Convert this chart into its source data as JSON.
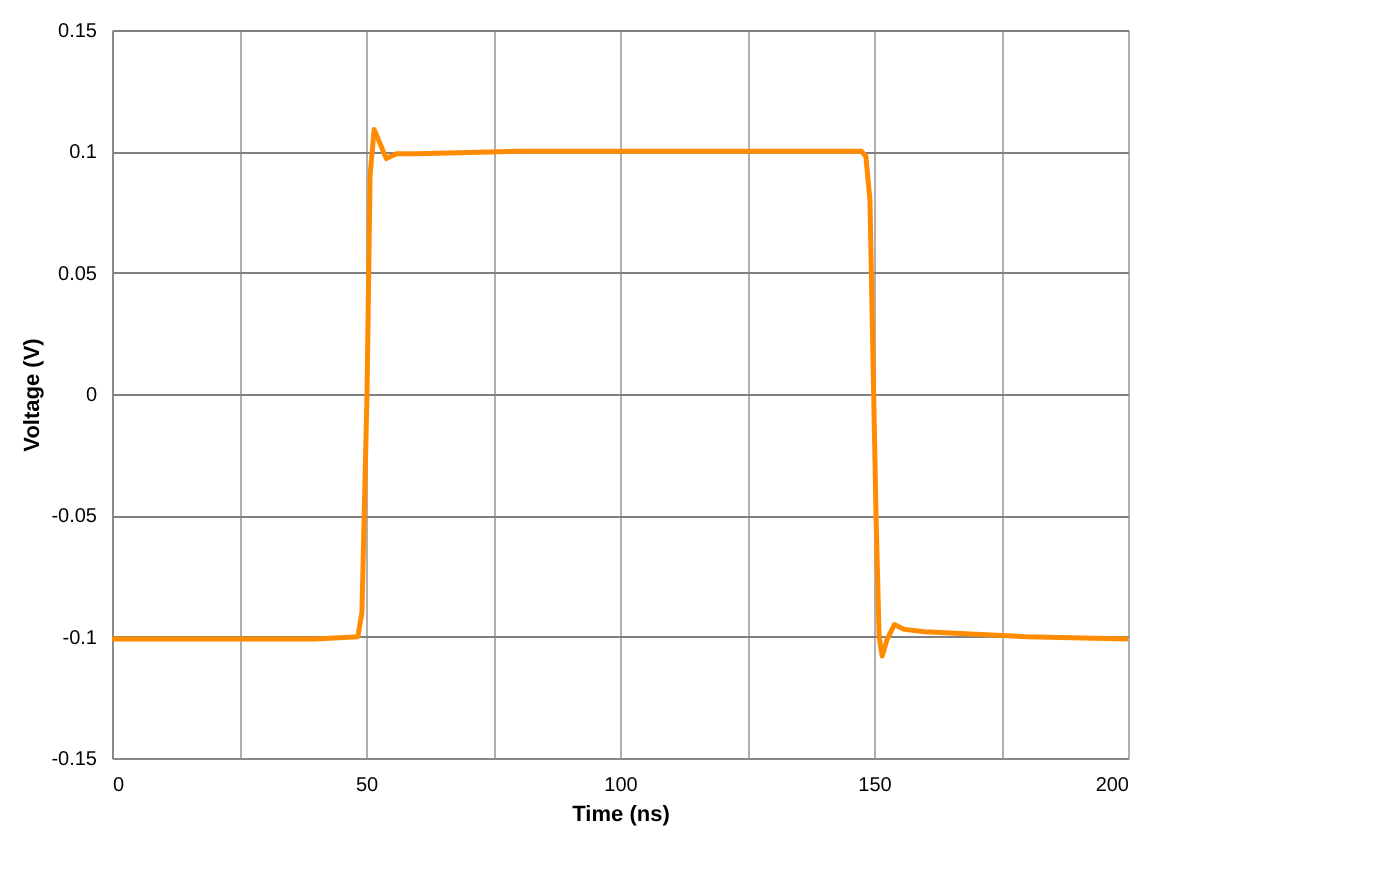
{
  "chart_data": {
    "type": "line",
    "xlabel": "Time (ns)",
    "ylabel": "Voltage (V)",
    "xlim": [
      0,
      200
    ],
    "ylim": [
      -0.15,
      0.15
    ],
    "xticks": [
      0,
      {
        "value": 25,
        "label": null
      },
      50,
      {
        "value": 75,
        "label": null
      },
      100,
      {
        "value": 125,
        "label": null
      },
      150,
      {
        "value": 175,
        "label": null
      },
      200
    ],
    "yticks": [
      -0.15,
      -0.1,
      -0.05,
      0,
      0.05,
      0.1,
      0.15
    ],
    "grid": true,
    "marker": "none",
    "line_style": "solid",
    "series": [
      {
        "color": "#ff8c00",
        "x": [
          0,
          20,
          40,
          48.4,
          49.2,
          50.2,
          50.8,
          51.6,
          52.6,
          54,
          56,
          60,
          80,
          100,
          120,
          140,
          147.5,
          148.4,
          149.2,
          150.4,
          151,
          151.6,
          152.6,
          154,
          156,
          160,
          170,
          180,
          200
        ],
        "values": [
          -0.101,
          -0.101,
          -0.101,
          -0.1,
          -0.09,
          0.0,
          0.09,
          0.109,
          0.104,
          0.097,
          0.099,
          0.099,
          0.1,
          0.1,
          0.1,
          0.1,
          0.1,
          0.098,
          0.08,
          -0.05,
          -0.1,
          -0.108,
          -0.101,
          -0.095,
          -0.097,
          -0.098,
          -0.099,
          -0.1,
          -0.101
        ]
      }
    ]
  }
}
